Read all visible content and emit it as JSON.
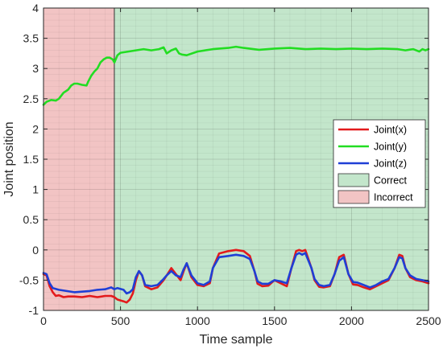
{
  "chart_data": {
    "type": "line",
    "xlabel": "Time sample",
    "ylabel": "Joint position",
    "xlim": [
      0,
      2500
    ],
    "ylim": [
      -1,
      4
    ],
    "xticks": [
      "0",
      "500",
      "1000",
      "1500",
      "2000",
      "2500"
    ],
    "yticks": [
      "-1",
      "-0.5",
      "0",
      "0.5",
      "1",
      "1.5",
      "2",
      "2.5",
      "3",
      "3.5",
      "4"
    ],
    "grid": true,
    "legend_position": "right",
    "regions": [
      {
        "name": "Incorrect",
        "x_start": 0,
        "x_end": 460,
        "color": "#f2c4c4"
      },
      {
        "name": "Correct",
        "x_start": 460,
        "x_end": 2500,
        "color": "#c3e6cb"
      }
    ],
    "series": [
      {
        "name": "Joint(x)",
        "color": "#e31a1c",
        "x": [
          0,
          20,
          40,
          60,
          80,
          100,
          130,
          160,
          200,
          250,
          300,
          350,
          400,
          440,
          460,
          480,
          520,
          540,
          560,
          580,
          600,
          620,
          640,
          660,
          700,
          740,
          780,
          800,
          830,
          860,
          890,
          910,
          930,
          960,
          1000,
          1040,
          1080,
          1100,
          1140,
          1200,
          1250,
          1300,
          1340,
          1370,
          1390,
          1420,
          1460,
          1500,
          1540,
          1580,
          1610,
          1640,
          1660,
          1680,
          1700,
          1740,
          1760,
          1790,
          1820,
          1860,
          1890,
          1920,
          1950,
          1980,
          2010,
          2040,
          2080,
          2120,
          2160,
          2200,
          2240,
          2280,
          2310,
          2330,
          2350,
          2380,
          2420,
          2460,
          2500
        ],
        "y": [
          -0.4,
          -0.42,
          -0.6,
          -0.7,
          -0.76,
          -0.75,
          -0.78,
          -0.77,
          -0.77,
          -0.78,
          -0.76,
          -0.78,
          -0.76,
          -0.76,
          -0.78,
          -0.82,
          -0.85,
          -0.87,
          -0.82,
          -0.72,
          -0.5,
          -0.35,
          -0.42,
          -0.6,
          -0.65,
          -0.62,
          -0.5,
          -0.42,
          -0.3,
          -0.4,
          -0.5,
          -0.35,
          -0.22,
          -0.45,
          -0.58,
          -0.6,
          -0.55,
          -0.3,
          -0.06,
          -0.02,
          0.0,
          -0.02,
          -0.1,
          -0.35,
          -0.56,
          -0.6,
          -0.59,
          -0.5,
          -0.55,
          -0.6,
          -0.3,
          -0.02,
          0.0,
          -0.02,
          0.0,
          -0.3,
          -0.5,
          -0.61,
          -0.62,
          -0.6,
          -0.4,
          -0.12,
          -0.08,
          -0.4,
          -0.57,
          -0.58,
          -0.62,
          -0.65,
          -0.6,
          -0.55,
          -0.5,
          -0.3,
          -0.08,
          -0.1,
          -0.3,
          -0.45,
          -0.5,
          -0.52,
          -0.55
        ]
      },
      {
        "name": "Joint(y)",
        "color": "#22dd22",
        "x": [
          0,
          20,
          50,
          80,
          100,
          130,
          160,
          180,
          200,
          220,
          250,
          280,
          290,
          310,
          330,
          350,
          370,
          390,
          410,
          430,
          450,
          460,
          480,
          500,
          550,
          600,
          650,
          700,
          750,
          780,
          800,
          830,
          860,
          880,
          900,
          930,
          1000,
          1100,
          1200,
          1250,
          1300,
          1400,
          1500,
          1600,
          1700,
          1800,
          1900,
          2000,
          2100,
          2200,
          2300,
          2350,
          2400,
          2440,
          2460,
          2480,
          2500
        ],
        "y": [
          2.4,
          2.45,
          2.48,
          2.47,
          2.5,
          2.6,
          2.65,
          2.72,
          2.75,
          2.75,
          2.73,
          2.72,
          2.78,
          2.88,
          2.95,
          3.0,
          3.1,
          3.15,
          3.18,
          3.18,
          3.15,
          3.1,
          3.22,
          3.26,
          3.28,
          3.3,
          3.32,
          3.3,
          3.32,
          3.35,
          3.25,
          3.3,
          3.33,
          3.25,
          3.23,
          3.22,
          3.28,
          3.32,
          3.34,
          3.36,
          3.34,
          3.31,
          3.33,
          3.34,
          3.32,
          3.33,
          3.32,
          3.33,
          3.32,
          3.33,
          3.32,
          3.3,
          3.32,
          3.28,
          3.32,
          3.3,
          3.32
        ]
      },
      {
        "name": "Joint(z)",
        "color": "#1f3fd6",
        "x": [
          0,
          20,
          40,
          60,
          100,
          150,
          200,
          250,
          300,
          350,
          400,
          440,
          460,
          480,
          520,
          540,
          560,
          580,
          600,
          620,
          640,
          660,
          700,
          740,
          780,
          800,
          830,
          860,
          890,
          910,
          930,
          960,
          1000,
          1040,
          1080,
          1100,
          1140,
          1200,
          1250,
          1300,
          1340,
          1370,
          1390,
          1420,
          1460,
          1500,
          1540,
          1580,
          1610,
          1640,
          1660,
          1680,
          1700,
          1740,
          1760,
          1790,
          1820,
          1860,
          1890,
          1920,
          1950,
          1980,
          2010,
          2040,
          2080,
          2120,
          2160,
          2200,
          2240,
          2280,
          2310,
          2330,
          2350,
          2380,
          2420,
          2460,
          2500
        ],
        "y": [
          -0.38,
          -0.4,
          -0.55,
          -0.63,
          -0.66,
          -0.68,
          -0.7,
          -0.69,
          -0.68,
          -0.66,
          -0.65,
          -0.62,
          -0.65,
          -0.63,
          -0.66,
          -0.72,
          -0.7,
          -0.65,
          -0.45,
          -0.35,
          -0.42,
          -0.58,
          -0.6,
          -0.58,
          -0.48,
          -0.42,
          -0.35,
          -0.42,
          -0.45,
          -0.32,
          -0.22,
          -0.42,
          -0.55,
          -0.58,
          -0.52,
          -0.3,
          -0.12,
          -0.1,
          -0.08,
          -0.1,
          -0.15,
          -0.35,
          -0.52,
          -0.56,
          -0.56,
          -0.5,
          -0.52,
          -0.55,
          -0.3,
          -0.08,
          -0.05,
          -0.08,
          -0.05,
          -0.3,
          -0.48,
          -0.58,
          -0.6,
          -0.58,
          -0.4,
          -0.18,
          -0.12,
          -0.4,
          -0.53,
          -0.54,
          -0.58,
          -0.62,
          -0.58,
          -0.52,
          -0.48,
          -0.3,
          -0.12,
          -0.14,
          -0.3,
          -0.42,
          -0.48,
          -0.5,
          -0.52
        ]
      }
    ],
    "legend": [
      {
        "label": "Joint(x)",
        "kind": "line",
        "color": "#e31a1c"
      },
      {
        "label": "Joint(y)",
        "kind": "line",
        "color": "#22dd22"
      },
      {
        "label": "Joint(z)",
        "kind": "line",
        "color": "#1f3fd6"
      },
      {
        "label": "Correct",
        "kind": "patch",
        "color": "#c3e6cb"
      },
      {
        "label": "Incorrect",
        "kind": "patch",
        "color": "#f2c4c4"
      }
    ]
  }
}
